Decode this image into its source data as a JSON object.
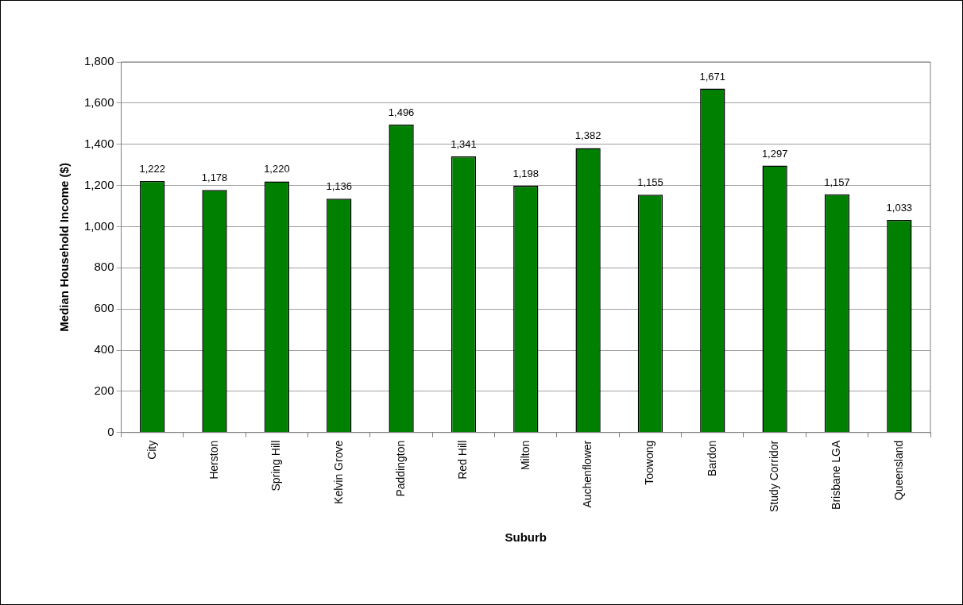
{
  "chart_data": {
    "type": "bar",
    "xlabel": "Suburb",
    "ylabel": "Median Household Income ($)",
    "categories": [
      "City",
      "Herston",
      "Spring Hill",
      "Kelvin Grove",
      "Paddington",
      "Red Hill",
      "Milton",
      "Auchenflower",
      "Toowong",
      "Bardon",
      "Study Corridor",
      "Brisbane LGA",
      "Queensland"
    ],
    "values": [
      1222,
      1178,
      1220,
      1136,
      1496,
      1341,
      1198,
      1382,
      1155,
      1671,
      1297,
      1157,
      1033
    ],
    "value_labels": [
      "1,222",
      "1,178",
      "1,220",
      "1,136",
      "1,496",
      "1,341",
      "1,198",
      "1,382",
      "1,155",
      "1,671",
      "1,297",
      "1,157",
      "1,033"
    ],
    "color": "#008000",
    "ylim": [
      0,
      1800
    ],
    "yticks": [
      0,
      200,
      400,
      600,
      800,
      {
        "value": 1000,
        "label": "1,000"
      },
      {
        "value": 1200,
        "label": "1,200"
      },
      {
        "value": 1400,
        "label": "1,400"
      },
      {
        "value": 1600,
        "label": "1,600"
      },
      {
        "value": 1800,
        "label": "1,800"
      }
    ],
    "grid": "y",
    "legend": false
  }
}
